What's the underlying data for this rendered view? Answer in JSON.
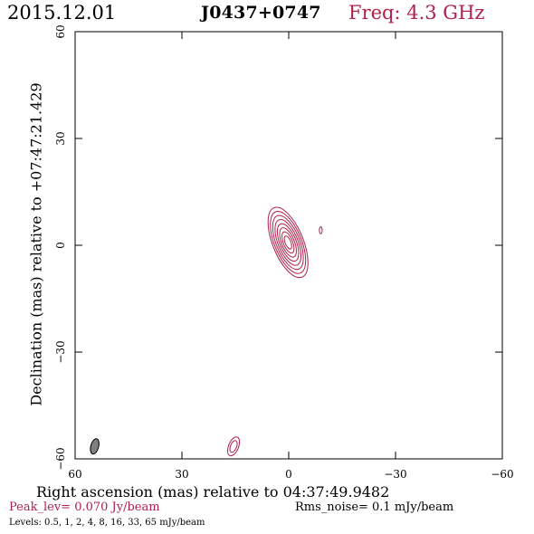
{
  "header": {
    "date": "2015.12.01",
    "source": "J0437+0747",
    "frequency": "Freq: 4.3 GHz"
  },
  "footer": {
    "peak_level": "Peak_lev=  0.070 Jy/beam",
    "rms_noise": "Rms_noise=  0.1 mJy/beam",
    "levels": "Levels: 0.5,   1,   2,   4,   8,  16,  33,  65 mJy/beam"
  },
  "colors": {
    "contour": "#b0204a",
    "beam": "#808080",
    "frame": "#000000"
  },
  "chart_data": {
    "type": "contour",
    "title": "J0437+0747",
    "xlabel": "Right ascension (mas) relative to 04:37:49.9482",
    "ylabel": "Declination (mas) relative to +07:47:21.429",
    "xlim": [
      60,
      -60
    ],
    "ylim": [
      -60,
      60
    ],
    "xticks": [
      60,
      30,
      0,
      -30,
      -60
    ],
    "xtick_labels": [
      "60",
      "30",
      "0",
      "−30",
      "−60"
    ],
    "yticks": [
      -60,
      -30,
      0,
      30,
      60
    ],
    "ytick_labels": [
      "−60",
      "−30",
      "0",
      "30",
      "60"
    ],
    "contour_levels_mJy": [
      0.5,
      1,
      2,
      4,
      8,
      16,
      33,
      65
    ],
    "components": [
      {
        "x": 0.2,
        "y": 0.8,
        "major": 10.5,
        "minor": 4.3,
        "angle": -22,
        "levels": 8
      },
      {
        "x": -9.0,
        "y": 4.2,
        "major": 1.0,
        "minor": 0.4,
        "angle": 0,
        "levels": 1
      },
      {
        "x": 15.5,
        "y": -56.5,
        "major": 2.8,
        "minor": 1.4,
        "angle": 22,
        "levels": 2
      }
    ],
    "beam": {
      "x": 54.5,
      "y": -56.5,
      "major": 2.2,
      "minor": 1.1,
      "angle": 15
    }
  }
}
